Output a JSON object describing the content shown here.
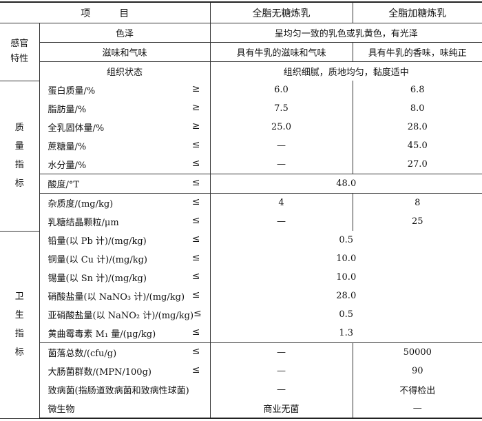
{
  "header": {
    "item": "项　　　目",
    "col1": "全脂无糖炼乳",
    "col2": "全脂加糖炼乳"
  },
  "groups": [
    {
      "category": "感官特性",
      "category_layout": "horizontal",
      "blocks": [
        {
          "rows": [
            {
              "item": "色泽",
              "sign": "",
              "merged": "呈均匀一致的乳色或乳黄色，有光泽"
            }
          ]
        },
        {
          "rows": [
            {
              "item": "滋味和气味",
              "sign": "",
              "v1": "具有牛乳的滋味和气味",
              "v2": "具有牛乳的香味，味纯正"
            }
          ]
        },
        {
          "rows": [
            {
              "item": "组织状态",
              "sign": "",
              "merged": "组织细腻，质地均匀，黏度适中"
            }
          ]
        }
      ]
    },
    {
      "category": "质量指标",
      "category_layout": "vertical",
      "blocks": [
        {
          "rows": [
            {
              "item": "蛋白质量/%",
              "sign": "≥",
              "v1": "6.0",
              "v2": "6.8"
            },
            {
              "item": "脂肪量/%",
              "sign": "≥",
              "v1": "7.5",
              "v2": "8.0"
            },
            {
              "item": "全乳固体量/%",
              "sign": "≥",
              "v1": "25.0",
              "v2": "28.0"
            },
            {
              "item": "蔗糖量/%",
              "sign": "≤",
              "v1": "—",
              "v2": "45.0"
            },
            {
              "item": "水分量/%",
              "sign": "≤",
              "v1": "—",
              "v2": "27.0"
            }
          ]
        },
        {
          "rows": [
            {
              "item": "酸度/°T",
              "sign": "≤",
              "merged": "48.0"
            }
          ]
        },
        {
          "rows": [
            {
              "item": "杂质度/(mg/kg)",
              "sign": "≤",
              "v1": "4",
              "v2": "8"
            },
            {
              "item": "乳糖结晶颗粒/μm",
              "sign": "≤",
              "v1": "—",
              "v2": "25"
            }
          ]
        }
      ]
    },
    {
      "category": "卫生指标",
      "category_layout": "vertical",
      "blocks": [
        {
          "rows": [
            {
              "item": "铅量(以 Pb 计)/(mg/kg)",
              "sign": "≤",
              "merged": "0.5"
            },
            {
              "item": "铜量(以 Cu 计)/(mg/kg)",
              "sign": "≤",
              "merged": "10.0"
            },
            {
              "item": "锡量(以 Sn 计)/(mg/kg)",
              "sign": "≤",
              "merged": "10.0"
            },
            {
              "item": "硝酸盐量(以 NaNO₃ 计)/(mg/kg)",
              "sign": "≤",
              "merged": "28.0"
            },
            {
              "item": "亚硝酸盐量(以 NaNO₂ 计)/(mg/kg)",
              "sign": "≤",
              "merged": "0.5"
            },
            {
              "item": "黄曲霉毒素 M₁ 量/(μg/kg)",
              "sign": "≤",
              "merged": "1.3"
            }
          ]
        },
        {
          "rows": [
            {
              "item": "菌落总数/(cfu/g)",
              "sign": "≤",
              "v1": "—",
              "v2": "50000"
            },
            {
              "item": "大肠菌群数/(MPN/100g)",
              "sign": "≤",
              "v1": "—",
              "v2": "90"
            },
            {
              "item": "致病菌(指肠道致病菌和致病性球菌)",
              "sign": "",
              "v1": "—",
              "v2": "不得检出"
            },
            {
              "item": "微生物",
              "sign": "",
              "v1": "商业无菌",
              "v2": "—"
            }
          ]
        }
      ]
    }
  ]
}
